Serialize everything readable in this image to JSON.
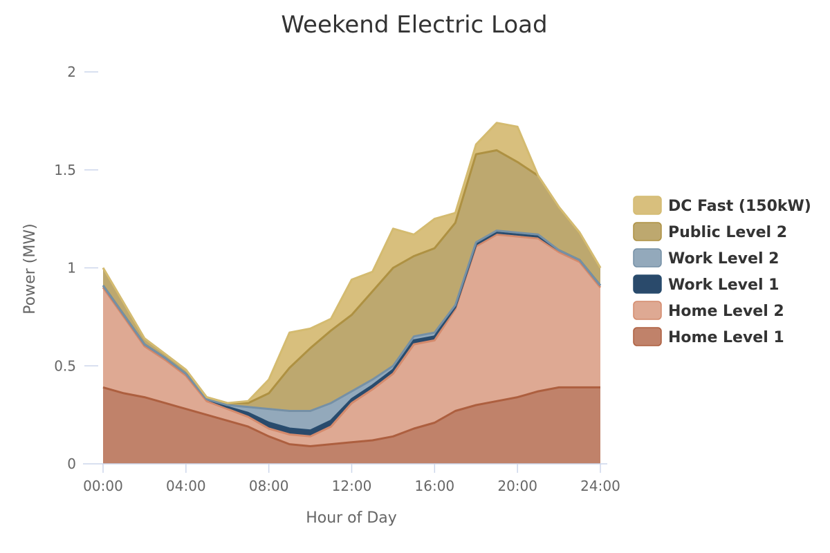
{
  "chart_data": {
    "type": "area",
    "stacked": true,
    "title": "Weekend Electric Load",
    "xlabel": "Hour of Day",
    "ylabel": "Power (MW)",
    "xlim": [
      0,
      24
    ],
    "ylim": [
      0,
      2
    ],
    "x_ticks": [
      0,
      4,
      8,
      12,
      16,
      20,
      24
    ],
    "x_tick_labels": [
      "00:00",
      "04:00",
      "08:00",
      "12:00",
      "16:00",
      "20:00",
      "24:00"
    ],
    "y_ticks": [
      0,
      0.5,
      1,
      1.5,
      2
    ],
    "y_tick_labels": [
      "0",
      "0.5",
      "1",
      "1.5",
      "2"
    ],
    "grid": false,
    "legend_position": "right",
    "x": [
      0,
      1,
      2,
      3,
      4,
      5,
      6,
      7,
      8,
      9,
      10,
      11,
      12,
      13,
      14,
      15,
      16,
      17,
      18,
      19,
      20,
      21,
      22,
      23,
      24
    ],
    "series": [
      {
        "name": "Home Level 1",
        "fill": "#c0826a",
        "stroke": "#ad5f3f",
        "values": [
          0.39,
          0.36,
          0.34,
          0.31,
          0.28,
          0.25,
          0.22,
          0.19,
          0.14,
          0.1,
          0.09,
          0.1,
          0.11,
          0.12,
          0.14,
          0.18,
          0.21,
          0.27,
          0.3,
          0.32,
          0.34,
          0.37,
          0.39,
          0.39,
          0.39
        ]
      },
      {
        "name": "Home Level 2",
        "fill": "#dea993",
        "stroke": "#d48a6c",
        "values": [
          0.51,
          0.39,
          0.26,
          0.22,
          0.17,
          0.07,
          0.06,
          0.05,
          0.04,
          0.05,
          0.05,
          0.09,
          0.2,
          0.26,
          0.32,
          0.43,
          0.42,
          0.52,
          0.81,
          0.85,
          0.82,
          0.78,
          0.69,
          0.64,
          0.51
        ]
      },
      {
        "name": "Work Level 1",
        "fill": "#2a4a6b",
        "stroke": "#284c6e",
        "values": [
          0.01,
          0.01,
          0.01,
          0.01,
          0.01,
          0.01,
          0.01,
          0.02,
          0.03,
          0.03,
          0.03,
          0.03,
          0.02,
          0.02,
          0.02,
          0.02,
          0.02,
          0.01,
          0.01,
          0.01,
          0.01,
          0.01,
          0.01,
          0.01,
          0.01
        ]
      },
      {
        "name": "Work Level 2",
        "fill": "#93a9bb",
        "stroke": "#7590a6",
        "values": [
          0.0,
          0.0,
          0.0,
          0.0,
          0.0,
          0.0,
          0.01,
          0.03,
          0.07,
          0.09,
          0.1,
          0.09,
          0.04,
          0.03,
          0.02,
          0.02,
          0.02,
          0.01,
          0.01,
          0.01,
          0.01,
          0.01,
          0.0,
          0.0,
          0.0
        ]
      },
      {
        "name": "Public Level 2",
        "fill": "#bda86f",
        "stroke": "#ae9142",
        "values": [
          0.09,
          0.06,
          0.03,
          0.02,
          0.02,
          0.01,
          0.01,
          0.02,
          0.08,
          0.22,
          0.32,
          0.37,
          0.39,
          0.45,
          0.5,
          0.41,
          0.43,
          0.42,
          0.45,
          0.41,
          0.36,
          0.3,
          0.22,
          0.14,
          0.09
        ]
      },
      {
        "name": "DC Fast (150kW)",
        "fill": "#d8bf7d",
        "stroke": "#d4bb70",
        "values": [
          0.0,
          0.0,
          0.0,
          0.0,
          0.0,
          0.0,
          0.0,
          0.01,
          0.07,
          0.18,
          0.1,
          0.06,
          0.18,
          0.1,
          0.2,
          0.11,
          0.15,
          0.05,
          0.05,
          0.14,
          0.18,
          0.0,
          0.0,
          0.0,
          0.0
        ]
      }
    ],
    "legend_order": [
      "DC Fast (150kW)",
      "Public Level 2",
      "Work Level 2",
      "Work Level 1",
      "Home Level 2",
      "Home Level 1"
    ]
  }
}
